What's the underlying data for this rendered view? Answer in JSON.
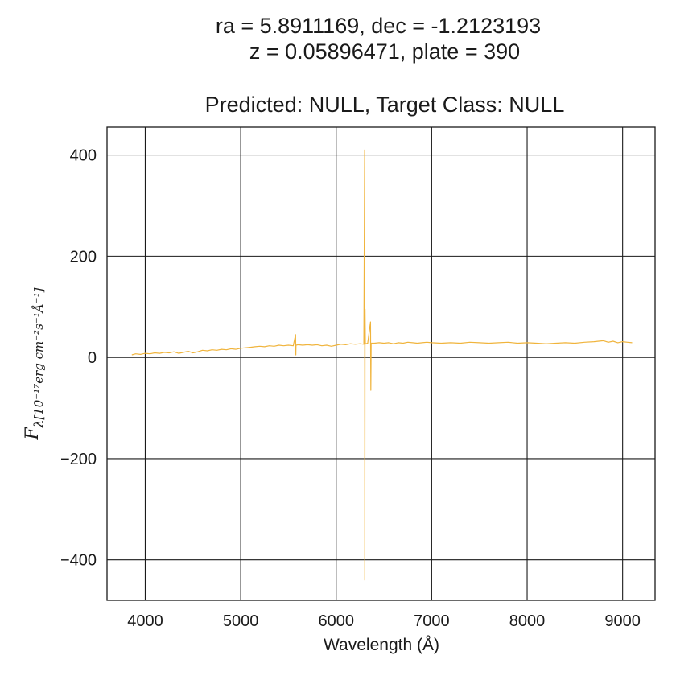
{
  "chart_data": {
    "type": "line",
    "title_lines": [
      "ra = 5.8911169, dec = -1.2123193",
      "z = 0.05896471, plate = 390",
      "Predicted: NULL, Target Class: NULL"
    ],
    "xlabel": "Wavelength (Å)",
    "ylabel": {
      "main": "F",
      "subscript": "λ[10⁻¹⁷erg cm⁻²s⁻¹Å⁻¹]"
    },
    "xlim": [
      3600,
      9340
    ],
    "ylim": [
      -480,
      455
    ],
    "x_ticks": [
      4000,
      5000,
      6000,
      7000,
      8000,
      9000
    ],
    "x_tick_labels": [
      "4000",
      "5000",
      "6000",
      "7000",
      "8000",
      "9000"
    ],
    "y_ticks": [
      -400,
      -200,
      0,
      200,
      400
    ],
    "y_tick_labels": [
      "−400",
      "−200",
      "0",
      "200",
      "400"
    ],
    "grid": true,
    "series": [
      {
        "color": "#f0b43c",
        "x": [
          3860,
          3900,
          3950,
          4000,
          4050,
          4100,
          4150,
          4200,
          4250,
          4300,
          4350,
          4400,
          4450,
          4500,
          4550,
          4600,
          4650,
          4700,
          4750,
          4800,
          4850,
          4900,
          4950,
          5000,
          5050,
          5100,
          5150,
          5200,
          5250,
          5300,
          5350,
          5400,
          5450,
          5500,
          5550,
          5575,
          5577,
          5579,
          5600,
          5650,
          5700,
          5750,
          5800,
          5850,
          5900,
          5950,
          6000,
          6050,
          6100,
          6150,
          6200,
          6250,
          6290,
          6298,
          6300,
          6302,
          6306,
          6310,
          6330,
          6360,
          6363,
          6366,
          6400,
          6450,
          6500,
          6550,
          6600,
          6650,
          6700,
          6750,
          6800,
          6850,
          6900,
          6950,
          7000,
          7100,
          7200,
          7300,
          7400,
          7500,
          7600,
          7700,
          7800,
          7900,
          8000,
          8100,
          8200,
          8300,
          8400,
          8500,
          8600,
          8700,
          8800,
          8850,
          8900,
          8950,
          9000,
          9050,
          9100
        ],
        "y": [
          5,
          7,
          6,
          8,
          7,
          9,
          8,
          10,
          9,
          11,
          8,
          10,
          12,
          9,
          11,
          14,
          13,
          15,
          14,
          16,
          15,
          17,
          16,
          18,
          19,
          20,
          21,
          22,
          21,
          23,
          22,
          24,
          23,
          24,
          23,
          45,
          5,
          24,
          25,
          24,
          25,
          24,
          25,
          23,
          24,
          22,
          24,
          26,
          25,
          27,
          26,
          27,
          26,
          410,
          -440,
          95,
          26,
          27,
          28,
          70,
          -65,
          28,
          28,
          29,
          28,
          29,
          27,
          29,
          28,
          30,
          29,
          28,
          29,
          30,
          29,
          28,
          29,
          28,
          30,
          29,
          28,
          29,
          30,
          28,
          29,
          28,
          27,
          28,
          29,
          28,
          30,
          31,
          33,
          30,
          32,
          29,
          31,
          30,
          29
        ]
      }
    ]
  }
}
